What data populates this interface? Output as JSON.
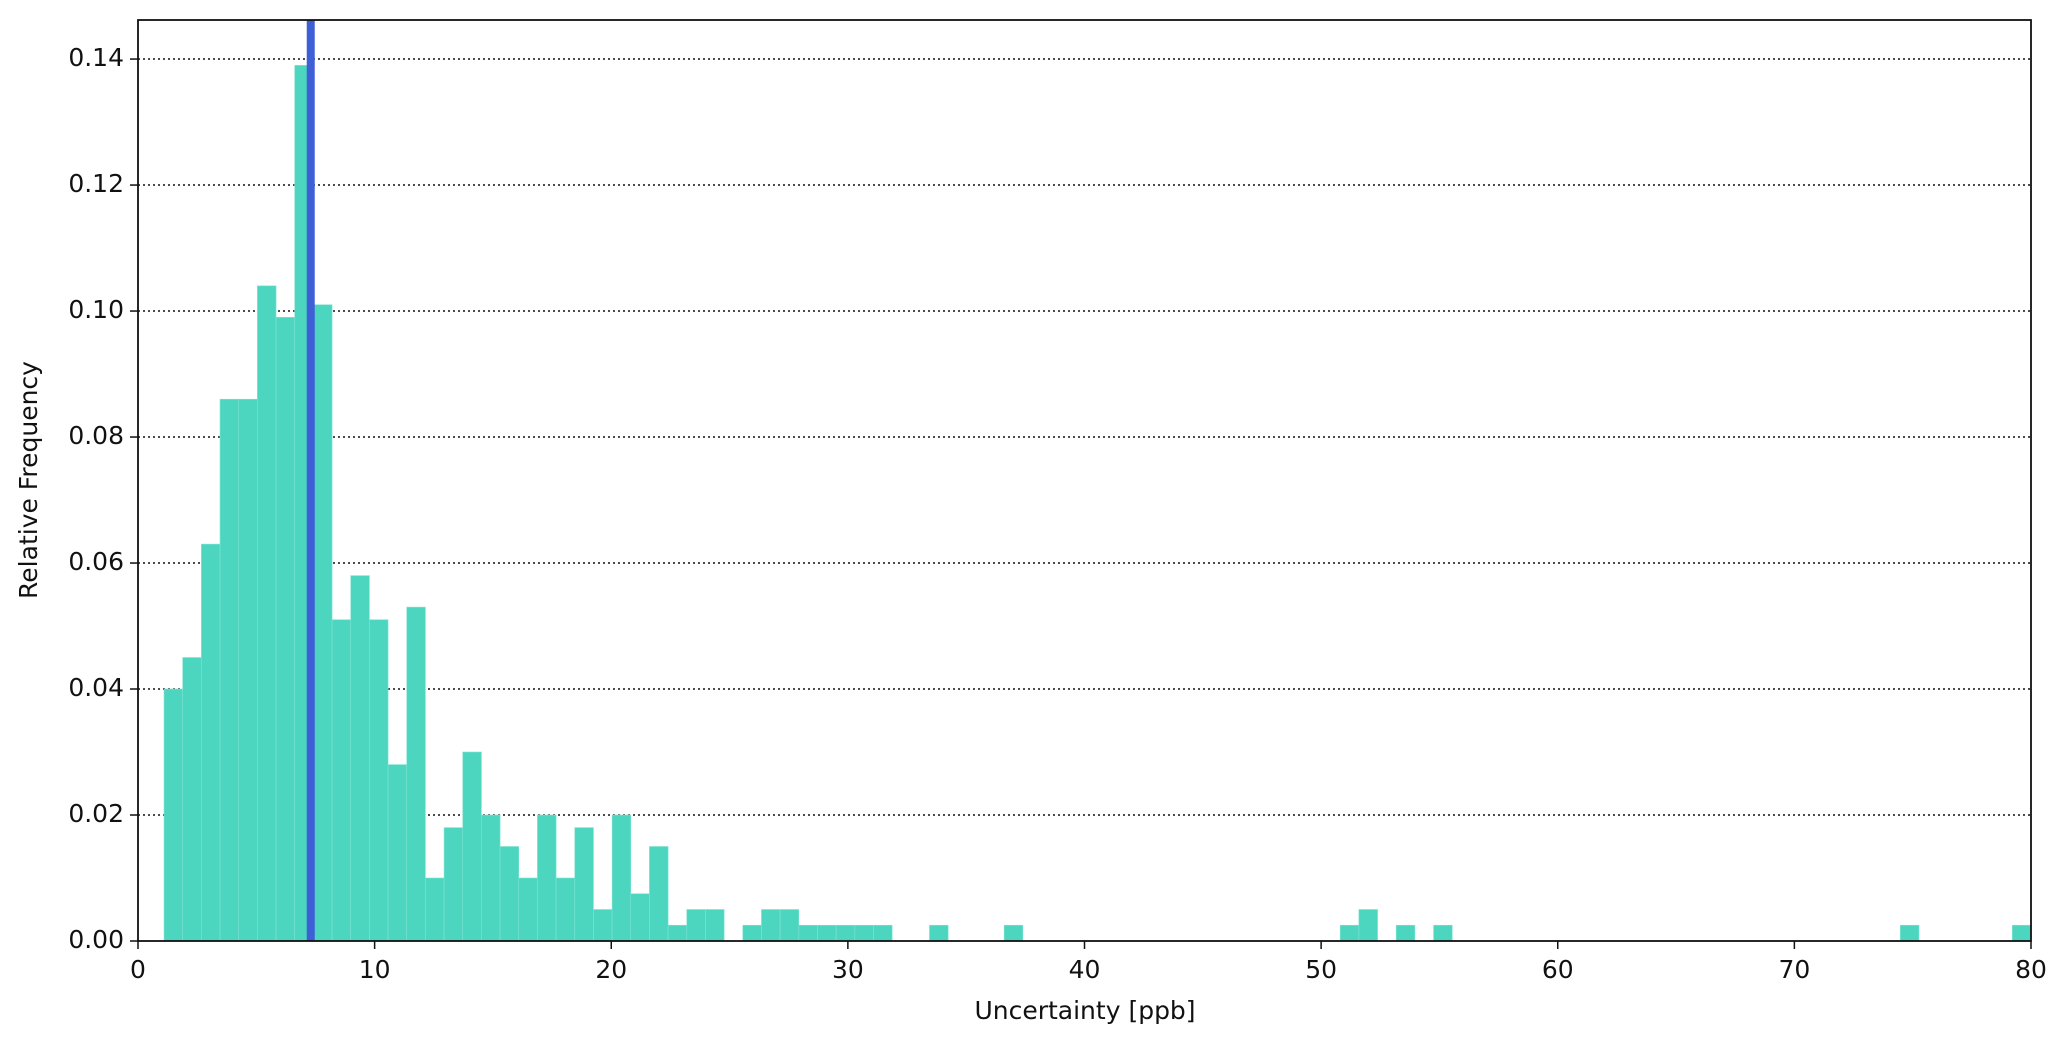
{
  "chart_data": {
    "type": "histogram",
    "xlabel": "Uncertainty [ppb]",
    "ylabel": "Relative Frequency",
    "bins": [
      1.1,
      1.889,
      2.678,
      3.467,
      4.256,
      5.045,
      5.834,
      6.623,
      7.412,
      8.201,
      8.99,
      9.779,
      10.568,
      11.357,
      12.146,
      12.935,
      13.724,
      14.513,
      15.302,
      16.091,
      16.88,
      17.669,
      18.458,
      19.247,
      20.036,
      20.825,
      21.614,
      22.403,
      23.192,
      23.981,
      24.77,
      25.559,
      26.348,
      27.137,
      27.926,
      28.715,
      29.504,
      30.293,
      31.082,
      31.871,
      32.66,
      33.449,
      34.238,
      35.027,
      35.816,
      36.605,
      37.394,
      38.183,
      38.972,
      39.761,
      40.55,
      41.339,
      42.128,
      42.917,
      43.706,
      44.495,
      45.284,
      46.073,
      46.862,
      47.651,
      48.44,
      49.229,
      50.018,
      50.807,
      51.596,
      52.385,
      53.174,
      53.963,
      54.752,
      55.541,
      56.33,
      57.119,
      57.908,
      58.697,
      59.486,
      60.275,
      61.064,
      61.853,
      62.642,
      63.431,
      64.22,
      65.009,
      65.798,
      66.587,
      67.376,
      68.165,
      68.954,
      69.743,
      70.532,
      71.321,
      72.11,
      72.899,
      73.688,
      74.477,
      75.266,
      76.055,
      76.844,
      77.633,
      78.422,
      79.211,
      80.0
    ],
    "values": [
      0.04,
      0.045,
      0.063,
      0.086,
      0.086,
      0.104,
      0.099,
      0.139,
      0.101,
      0.051,
      0.058,
      0.051,
      0.028,
      0.053,
      0.01,
      0.018,
      0.03,
      0.02,
      0.015,
      0.01,
      0.02,
      0.01,
      0.018,
      0.005,
      0.02,
      0.0075,
      0.015,
      0.0025,
      0.005,
      0.005,
      0,
      0.0025,
      0.005,
      0.005,
      0.0025,
      0.0025,
      0.0025,
      0.0025,
      0.0025,
      0,
      0,
      0.0025,
      0,
      0,
      0,
      0.0025,
      0,
      0,
      0,
      0,
      0,
      0,
      0,
      0,
      0,
      0,
      0,
      0,
      0,
      0,
      0,
      0,
      0,
      0.0025,
      0.005,
      0,
      0.0025,
      0,
      0.0025,
      0,
      0,
      0,
      0,
      0,
      0,
      0,
      0,
      0,
      0,
      0,
      0,
      0,
      0,
      0,
      0,
      0,
      0,
      0,
      0,
      0,
      0,
      0,
      0,
      0.0025,
      0,
      0,
      0,
      0,
      0,
      0.0025
    ],
    "color": "#4dd6bf",
    "vline": {
      "x": 7.3,
      "color": "#3f5fd6"
    },
    "xlim": [
      0,
      80
    ],
    "xticks": [
      0,
      10,
      20,
      30,
      40,
      50,
      60,
      70,
      80
    ],
    "ylim": [
      0,
      0.1462
    ],
    "yticks": [
      {
        "value": 0,
        "label": "0.00"
      },
      {
        "value": 0.02,
        "label": "0.02"
      },
      {
        "value": 0.04,
        "label": "0.04"
      },
      {
        "value": 0.06,
        "label": "0.06"
      },
      {
        "value": 0.08,
        "label": "0.08"
      },
      {
        "value": 0.1,
        "label": "0.10"
      },
      {
        "value": 0.12,
        "label": "0.12"
      },
      {
        "value": 0.14,
        "label": "0.14"
      }
    ],
    "grid": true
  }
}
